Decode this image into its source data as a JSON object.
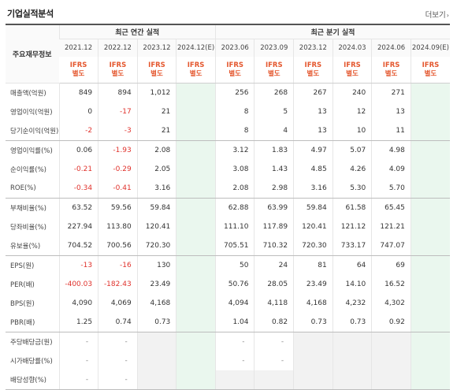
{
  "header": {
    "title": "기업실적분석",
    "more_label": "더보기",
    "more_chev": "›"
  },
  "table": {
    "corner_label": "주요재무정보",
    "annual_group": "최근 연간 실적",
    "quarter_group": "최근 분기 실적",
    "periods": [
      "2021.12",
      "2022.12",
      "2023.12",
      "2024.12(E)",
      "2023.06",
      "2023.09",
      "2023.12",
      "2024.03",
      "2024.06",
      "2024.09(E)"
    ],
    "ifrs_top": "IFRS",
    "ifrs_bottom": "별도",
    "rows": [
      {
        "name": "매출액(억원)",
        "values": [
          "849",
          "894",
          "1,012",
          "",
          "256",
          "268",
          "267",
          "240",
          "271",
          ""
        ]
      },
      {
        "name": "영업이익(억원)",
        "values": [
          "0",
          "-17",
          "21",
          "",
          "8",
          "5",
          "13",
          "12",
          "13",
          ""
        ]
      },
      {
        "name": "당기순이익(억원)",
        "values": [
          "-2",
          "-3",
          "21",
          "",
          "8",
          "4",
          "13",
          "10",
          "11",
          ""
        ]
      },
      {
        "name": "영업이익률(%)",
        "values": [
          "0.06",
          "-1.93",
          "2.08",
          "",
          "3.12",
          "1.83",
          "4.97",
          "5.07",
          "4.98",
          ""
        ]
      },
      {
        "name": "순이익률(%)",
        "values": [
          "-0.21",
          "-0.29",
          "2.05",
          "",
          "3.08",
          "1.43",
          "4.85",
          "4.26",
          "4.09",
          ""
        ]
      },
      {
        "name": "ROE(%)",
        "values": [
          "-0.34",
          "-0.41",
          "3.16",
          "",
          "2.08",
          "2.98",
          "3.16",
          "5.30",
          "5.70",
          ""
        ]
      },
      {
        "name": "부채비율(%)",
        "values": [
          "63.52",
          "59.56",
          "59.84",
          "",
          "62.88",
          "63.99",
          "59.84",
          "61.58",
          "65.45",
          ""
        ]
      },
      {
        "name": "당좌비율(%)",
        "values": [
          "227.94",
          "113.80",
          "120.41",
          "",
          "111.10",
          "117.89",
          "120.41",
          "121.12",
          "121.21",
          ""
        ]
      },
      {
        "name": "유보율(%)",
        "values": [
          "704.52",
          "700.56",
          "720.30",
          "",
          "705.51",
          "710.32",
          "720.30",
          "733.17",
          "747.07",
          ""
        ]
      },
      {
        "name": "EPS(원)",
        "values": [
          "-13",
          "-16",
          "130",
          "",
          "50",
          "24",
          "81",
          "64",
          "69",
          ""
        ]
      },
      {
        "name": "PER(배)",
        "values": [
          "-400.03",
          "-182.43",
          "23.49",
          "",
          "50.76",
          "28.05",
          "23.49",
          "14.10",
          "16.52",
          ""
        ]
      },
      {
        "name": "BPS(원)",
        "values": [
          "4,090",
          "4,069",
          "4,168",
          "",
          "4,094",
          "4,118",
          "4,168",
          "4,232",
          "4,302",
          ""
        ]
      },
      {
        "name": "PBR(배)",
        "values": [
          "1.25",
          "0.74",
          "0.73",
          "",
          "1.04",
          "0.82",
          "0.73",
          "0.73",
          "0.92",
          ""
        ]
      },
      {
        "name": "주당배당금(원)",
        "values": [
          "-",
          "-",
          "",
          "",
          "-",
          "-",
          "",
          "",
          "",
          ""
        ]
      },
      {
        "name": "시가배당률(%)",
        "values": [
          "-",
          "-",
          "",
          "",
          "-",
          "-",
          "",
          "",
          "",
          ""
        ]
      },
      {
        "name": "배당성향(%)",
        "values": [
          "-",
          "-",
          "",
          "",
          "",
          "",
          "",
          "",
          "",
          ""
        ]
      }
    ]
  },
  "colors": {
    "negative": "#e0322c",
    "ifrs": "#e4572e",
    "estimate_bg": "#eaf7ee"
  }
}
